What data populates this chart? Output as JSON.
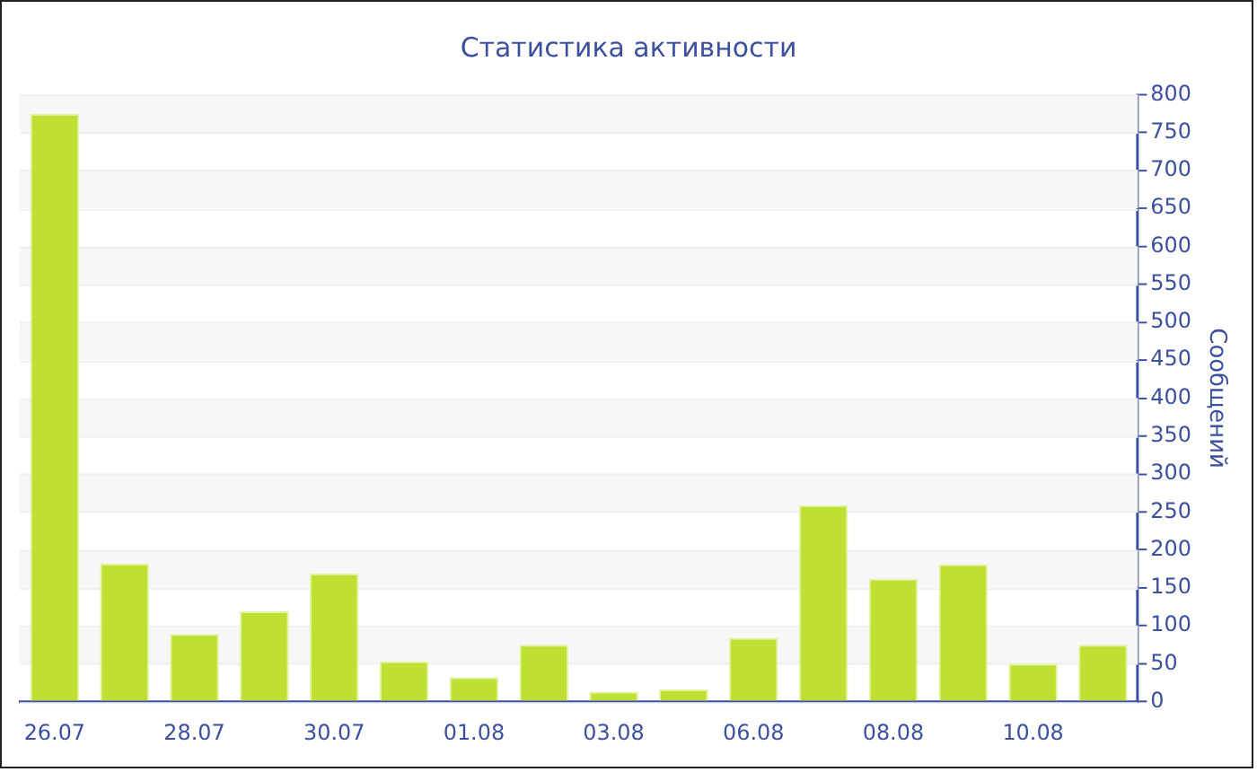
{
  "chart_data": {
    "type": "bar",
    "title": "Статистика активности",
    "ylabel": "Сообщений",
    "categories": [
      "26.07",
      null,
      "28.07",
      null,
      "30.07",
      null,
      "01.08",
      null,
      "03.08",
      null,
      "06.08",
      null,
      "08.08",
      null,
      "10.08",
      null
    ],
    "values": [
      775,
      182,
      89,
      119,
      169,
      53,
      32,
      75,
      13,
      16,
      84,
      259,
      162,
      181,
      50,
      75
    ],
    "color": "#bde032",
    "ylim": [
      0,
      800
    ],
    "yticks": [
      0,
      50,
      100,
      150,
      200,
      250,
      300,
      350,
      400,
      450,
      500,
      550,
      600,
      650,
      700,
      750,
      800
    ],
    "grid": "y",
    "legend": false
  }
}
